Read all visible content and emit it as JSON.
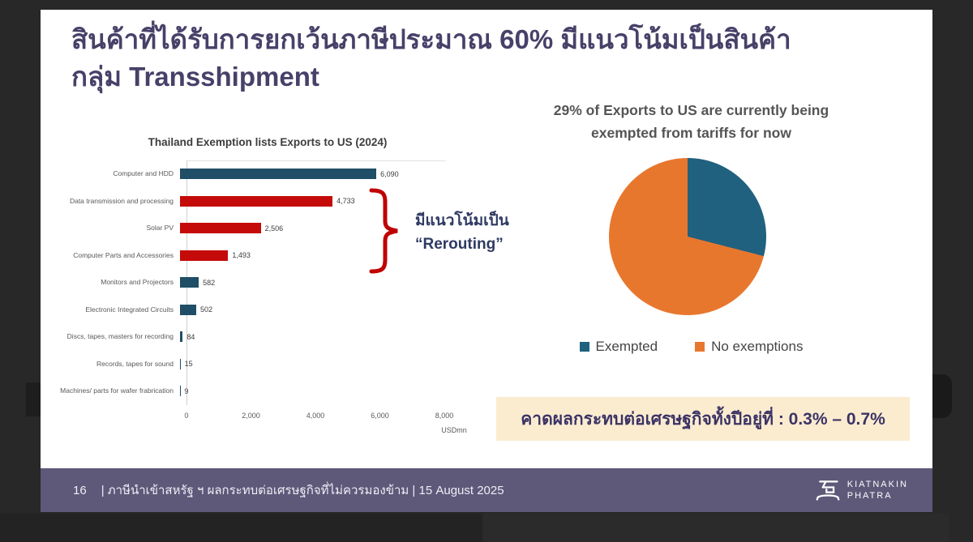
{
  "slide": {
    "title_line1": "สินค้าที่ได้รับการยกเว้นภาษีประมาณ 60% มีแนวโน้มเป็นสินค้า",
    "title_line2": "กลุ่ม Transshipment",
    "title_color": "#474169",
    "background": "#ffffff"
  },
  "chart_data": [
    {
      "type": "bar",
      "orientation": "horizontal",
      "title": "Thailand Exemption lists Exports to US (2024)",
      "categories": [
        "Computer and HDD",
        "Data transmission and processing",
        "Solar PV",
        "Computer Parts and Accessories",
        "Monitors and Projectors",
        "Electronic Integrated Circuits",
        "Discs, tapes, masters for recording",
        "Records, tapes for sound",
        "Machines/ parts for wafer frabrication"
      ],
      "values": [
        6090,
        4733,
        2506,
        1493,
        582,
        502,
        84,
        15,
        9
      ],
      "value_labels": [
        "6,090",
        "4,733",
        "2,506",
        "1,493",
        "582",
        "502",
        "84",
        "15",
        "9"
      ],
      "bar_colors": [
        "#1f4e66",
        "#c50a0a",
        "#c50a0a",
        "#c50a0a",
        "#1f4e66",
        "#1f4e66",
        "#1f4e66",
        "#1f4e66",
        "#1f4e66"
      ],
      "xlim": [
        0,
        8000
      ],
      "x_ticks": [
        "0",
        "2,000",
        "4,000",
        "6,000",
        "8,000"
      ],
      "x_unit": "USDmn",
      "grid": false,
      "annotation": {
        "line1": "มีแนวโน้มเป็น",
        "line2": "“Rerouting”",
        "bracket_color": "#c00000",
        "bracket_covers": [
          "Data transmission and processing",
          "Solar PV",
          "Computer Parts and Accessories"
        ]
      }
    },
    {
      "type": "pie",
      "title_line1": "29% of Exports to US are currently being",
      "title_line2": "exempted from tariffs for now",
      "slices": [
        {
          "label": "Exempted",
          "value": 29,
          "color": "#20617f"
        },
        {
          "label": "No exemptions",
          "value": 71,
          "color": "#e8772e"
        }
      ],
      "start_angle_deg": 0,
      "legend_position": "bottom"
    }
  ],
  "impact_box": {
    "text": "คาดผลกระทบต่อเศรษฐกิจทั้งปีอยู่ที่ : 0.3% – 0.7%",
    "background": "#fbecd0",
    "text_color": "#3b3366"
  },
  "footer": {
    "page_number": "16",
    "text": "| ภาษีนำเข้าสหรัฐ ฯ ผลกระทบต่อเศรษฐกิจที่ไม่ควรมองข้าม | 15 August 2025",
    "logo_line1": "KIATNAKIN",
    "logo_line2": "PHATRA",
    "bar_color": "#5e5879"
  }
}
